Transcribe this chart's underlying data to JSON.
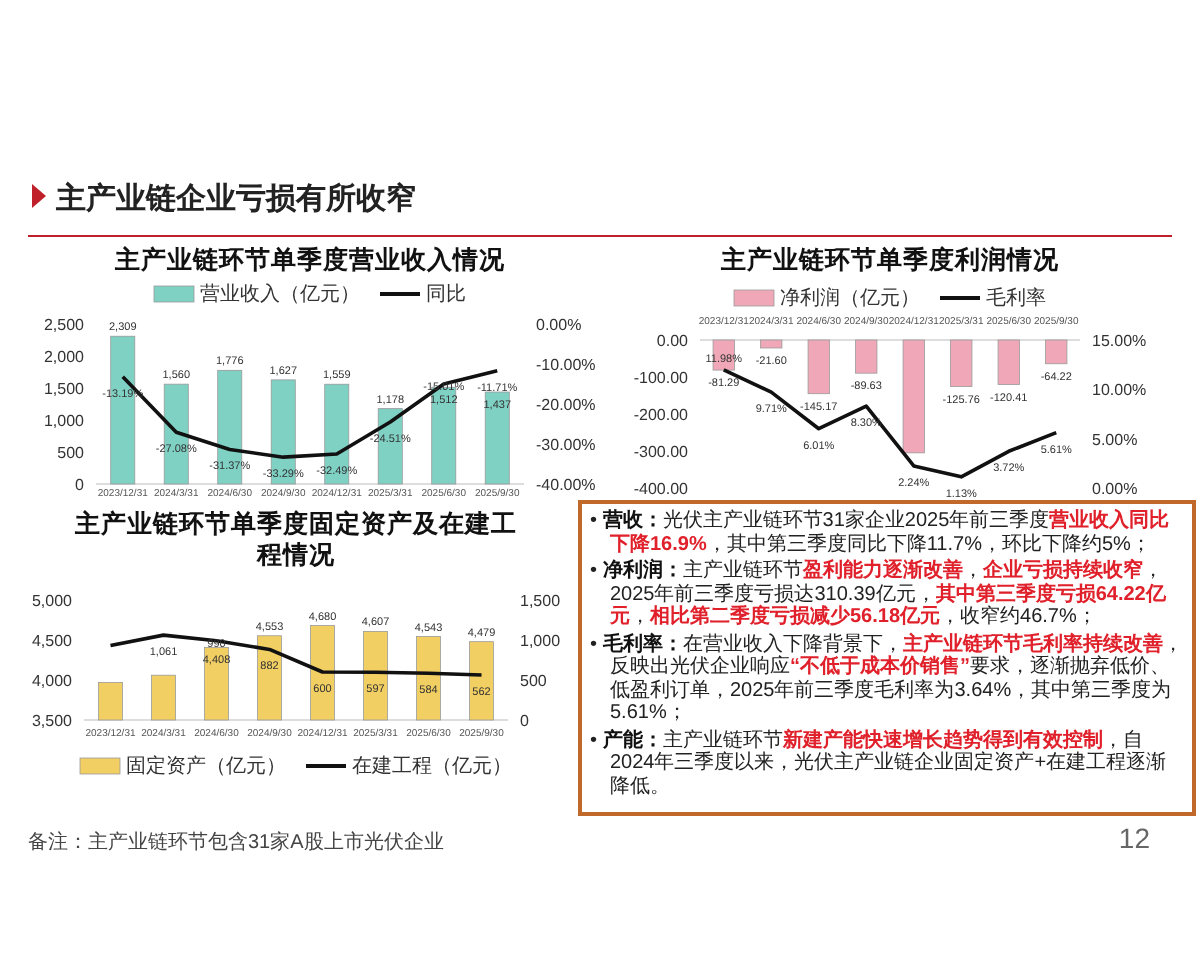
{
  "chart_data": [
    {
      "type": "bar",
      "title": "主产业链环节单季度营业收入情况",
      "categories": [
        "2023/12/31",
        "2024/3/31",
        "2024/6/30",
        "2024/9/30",
        "2024/12/31",
        "2025/3/31",
        "2025/6/30",
        "2025/9/30"
      ],
      "legend": "top",
      "ylim": [
        0,
        2500
      ],
      "yticks": [
        {
          "value": 0,
          "label": "0"
        },
        {
          "value": 500,
          "label": "500"
        },
        {
          "value": 1000,
          "label": "1,000"
        },
        {
          "value": 1500,
          "label": "1,500"
        },
        {
          "value": 2000,
          "label": "2,000"
        },
        {
          "value": 2500,
          "label": "2,500"
        }
      ],
      "y2lim": [
        -40,
        0
      ],
      "y2ticks": [
        {
          "value": -40,
          "label": "-40.00%"
        },
        {
          "value": -30,
          "label": "-30.00%"
        },
        {
          "value": -20,
          "label": "-20.00%"
        },
        {
          "value": -10,
          "label": "-10.00%"
        },
        {
          "value": 0,
          "label": "0.00%"
        }
      ],
      "series": [
        {
          "name": "营业收入（亿元）",
          "type": "bar",
          "color": "#7fd1c4",
          "values": [
            2309,
            1560,
            1776,
            1627,
            1559,
            1178,
            1512,
            1437
          ],
          "value_labels": [
            "2,309",
            "1,560",
            "1,776",
            "1,627",
            "1,559",
            "1,178",
            "1,512",
            "1,437"
          ]
        },
        {
          "name": "同比",
          "type": "line",
          "axis": "y2",
          "color": "#111111",
          "values": [
            -13.19,
            -27.08,
            -31.37,
            -33.29,
            -32.49,
            -24.51,
            -15.01,
            -11.71
          ],
          "value_labels": [
            "-13.19%",
            "-27.08%",
            "-31.37%",
            "-33.29%",
            "-32.49%",
            "-24.51%",
            "-15.01%",
            "-11.71%"
          ]
        }
      ]
    },
    {
      "type": "bar",
      "title": "主产业链环节单季度利润情况",
      "categories": [
        "2023/12/31",
        "2024/3/31",
        "2024/6/30",
        "2024/9/30",
        "2024/12/31",
        "2025/3/31",
        "2025/6/30",
        "2025/9/30"
      ],
      "legend": "top",
      "ylim": [
        -400,
        0
      ],
      "yticks": [
        {
          "value": -400,
          "label": "-400.00"
        },
        {
          "value": -300,
          "label": "-300.00"
        },
        {
          "value": -200,
          "label": "-200.00"
        },
        {
          "value": -100,
          "label": "-100.00"
        },
        {
          "value": 0,
          "label": "0.00"
        }
      ],
      "y2lim": [
        0,
        15
      ],
      "y2ticks": [
        {
          "value": 0,
          "label": "0.00%"
        },
        {
          "value": 5,
          "label": "5.00%"
        },
        {
          "value": 10,
          "label": "10.00%"
        },
        {
          "value": 15,
          "label": "15.00%"
        }
      ],
      "series": [
        {
          "name": "净利润（亿元）",
          "type": "bar",
          "color": "#f0a8b8",
          "values": [
            -81.29,
            -21.6,
            -145.17,
            -89.63,
            -305,
            -125.76,
            -120.41,
            -64.22
          ],
          "value_labels": [
            "-81.29",
            "-21.60",
            "-145.17",
            "-89.63",
            null,
            "-125.76",
            "-120.41",
            "-64.22"
          ]
        },
        {
          "name": "毛利率",
          "type": "line",
          "axis": "y2",
          "color": "#111111",
          "values": [
            11.98,
            9.71,
            6.01,
            8.3,
            2.24,
            1.13,
            3.72,
            5.61
          ],
          "value_labels": [
            "11.98%",
            "9.71%",
            "6.01%",
            "8.30%",
            "2.24%",
            "1.13%",
            "3.72%",
            "5.61%"
          ]
        }
      ]
    },
    {
      "type": "bar",
      "title": "主产业链环节单季度固定资产及在建工程情况",
      "categories": [
        "2023/12/31",
        "2024/3/31",
        "2024/6/30",
        "2024/9/30",
        "2024/12/31",
        "2025/3/31",
        "2025/6/30",
        "2025/9/30"
      ],
      "legend": "bottom",
      "ylim": [
        3500,
        5000
      ],
      "yticks": [
        {
          "value": 3500,
          "label": "3,500"
        },
        {
          "value": 4000,
          "label": "4,000"
        },
        {
          "value": 4500,
          "label": "4,500"
        },
        {
          "value": 5000,
          "label": "5,000"
        }
      ],
      "y2lim": [
        0,
        1500
      ],
      "y2ticks": [
        {
          "value": 0,
          "label": "0"
        },
        {
          "value": 500,
          "label": "500"
        },
        {
          "value": 1000,
          "label": "1,000"
        },
        {
          "value": 1500,
          "label": "1,500"
        }
      ],
      "series": [
        {
          "name": "固定资产（亿元）",
          "type": "bar",
          "color": "#f2cf63",
          "values": [
            3970,
            4060,
            4408,
            4553,
            4680,
            4607,
            4543,
            4479
          ],
          "value_labels": [
            null,
            null,
            "4,408",
            "4,553",
            "4,680",
            "4,607",
            "4,543",
            "4,479"
          ]
        },
        {
          "name": "在建工程（亿元）",
          "type": "line",
          "axis": "y2",
          "color": "#111111",
          "values": [
            930,
            1061,
            990,
            882,
            600,
            597,
            584,
            562
          ],
          "value_labels": [
            null,
            "1,061",
            "990",
            "882",
            "600",
            "597",
            "584",
            "562"
          ]
        }
      ]
    },
    {
      "type": "other",
      "title": "主产业链企业亏损有所收窄",
      "annotations": [
        "• **营收：**光伏主产业链环节31家企业2025年前三季度**营业收入同比下降16.9%**，其中第三季度同比下降11.7%，环比下降约5%；",
        "• **净利润：**主产业链环节**盈利能力逐渐改善**，**企业亏损持续收窄**，2025年前三季度亏损达310.39亿元，**其中第三季度亏损64.22亿元**，**相比第二季度亏损减少56.18亿元**，收窄约46.7%；",
        "• **毛利率：**在营业收入下降背景下，**主产业链环节毛利率持续改善**，反映出光伏企业响应**“不低于成本价销售”**要求，逐渐抛弃低价、低盈利订单，2025年前三季度毛利率为3.64%，其中第三季度为5.61%；",
        "• **产能：**主产业链环节**新建产能快速增长趋势得到有效控制**，自2024年三季度以来，光伏主产业链企业固定资产+在建工程逐渐降低。",
        "备注：主产业链环节包含31家A股上市光伏企业",
        "12"
      ]
    }
  ]
}
